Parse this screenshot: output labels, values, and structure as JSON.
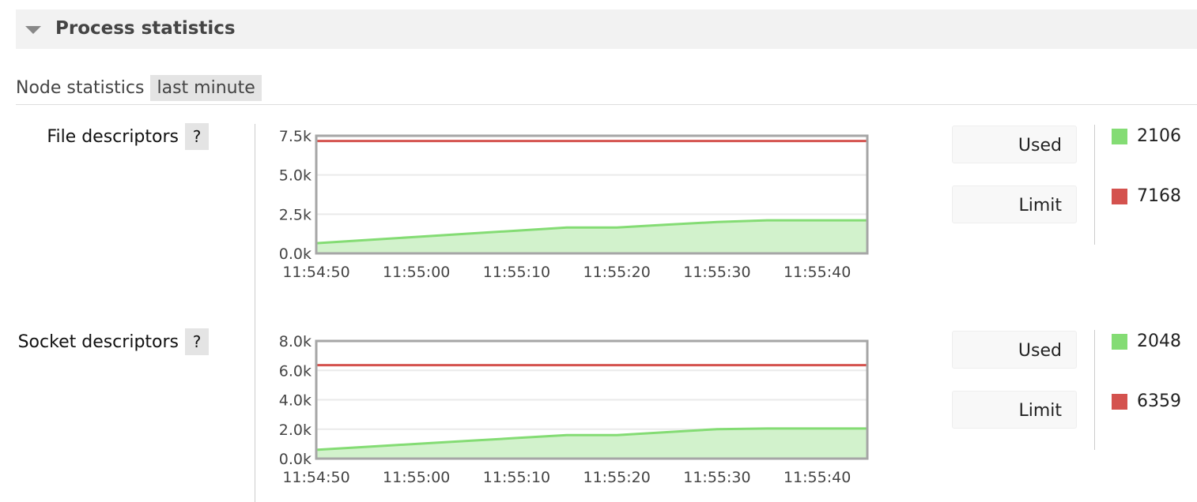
{
  "section": {
    "title": "Process statistics"
  },
  "tabs": {
    "label": "Node statistics",
    "selected": "last minute"
  },
  "colors": {
    "used": "#84dc74",
    "limit": "#d4524e",
    "fill": "#d2f2cc"
  },
  "chart_data": [
    {
      "type": "area",
      "label": "File descriptors",
      "help": "?",
      "x": [
        "11:54:50",
        "11:54:55",
        "11:55:00",
        "11:55:05",
        "11:55:10",
        "11:55:15",
        "11:55:20",
        "11:55:25",
        "11:55:30",
        "11:55:35",
        "11:55:40",
        "11:55:45"
      ],
      "xticks": [
        "11:54:50",
        "11:55:00",
        "11:55:10",
        "11:55:20",
        "11:55:30",
        "11:55:40"
      ],
      "yticks": [
        "0.0k",
        "2.5k",
        "5.0k",
        "7.5k"
      ],
      "ylim": [
        0,
        7500
      ],
      "grid": true,
      "series": [
        {
          "name": "Used",
          "values": [
            650,
            850,
            1050,
            1250,
            1450,
            1650,
            1650,
            1830,
            2000,
            2106,
            2106,
            2106
          ],
          "current": "2106"
        },
        {
          "name": "Limit",
          "values": [
            7168,
            7168,
            7168,
            7168,
            7168,
            7168,
            7168,
            7168,
            7168,
            7168,
            7168,
            7168
          ],
          "current": "7168"
        }
      ]
    },
    {
      "type": "area",
      "label": "Socket descriptors",
      "help": "?",
      "x": [
        "11:54:50",
        "11:54:55",
        "11:55:00",
        "11:55:05",
        "11:55:10",
        "11:55:15",
        "11:55:20",
        "11:55:25",
        "11:55:30",
        "11:55:35",
        "11:55:40",
        "11:55:45"
      ],
      "xticks": [
        "11:54:50",
        "11:55:00",
        "11:55:10",
        "11:55:20",
        "11:55:30",
        "11:55:40"
      ],
      "yticks": [
        "0.0k",
        "2.0k",
        "4.0k",
        "6.0k",
        "8.0k"
      ],
      "ylim": [
        0,
        8000
      ],
      "grid": true,
      "series": [
        {
          "name": "Used",
          "values": [
            600,
            800,
            1000,
            1200,
            1400,
            1600,
            1600,
            1800,
            2000,
            2048,
            2048,
            2048
          ],
          "current": "2048"
        },
        {
          "name": "Limit",
          "values": [
            6359,
            6359,
            6359,
            6359,
            6359,
            6359,
            6359,
            6359,
            6359,
            6359,
            6359,
            6359
          ],
          "current": "6359"
        }
      ]
    }
  ]
}
